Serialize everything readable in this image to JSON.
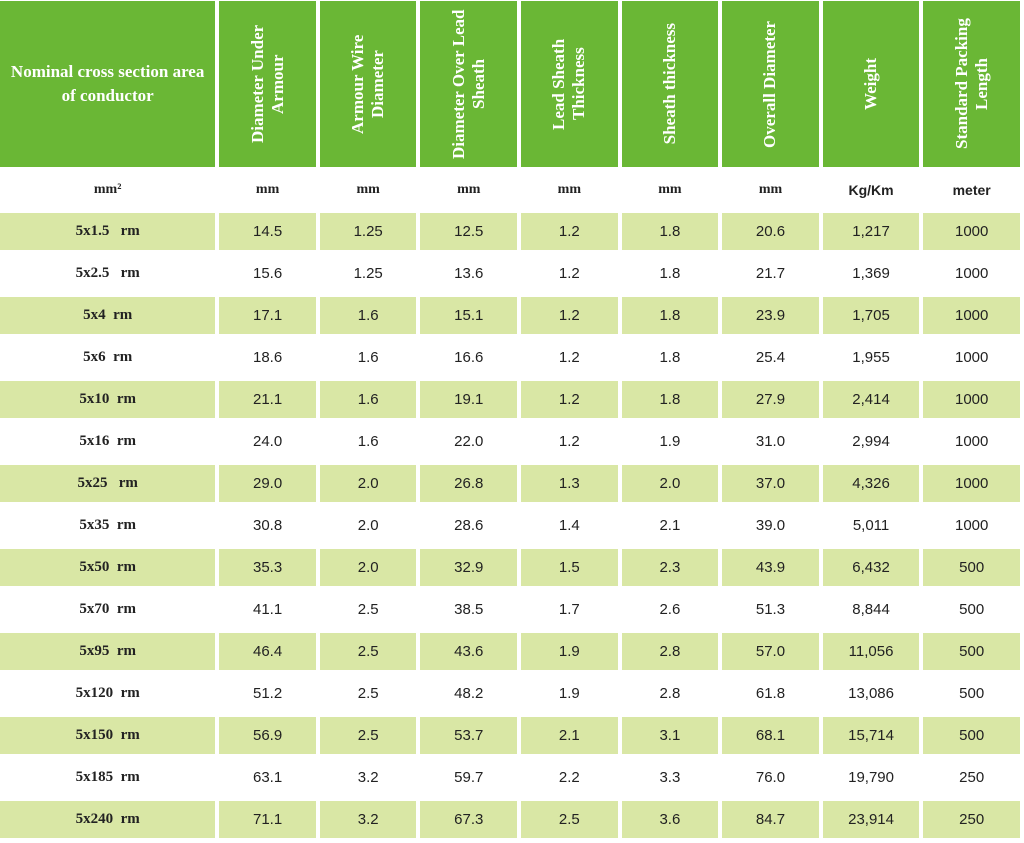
{
  "table": {
    "headers": [
      "Nominal cross section area of conductor",
      "Diameter Under Armour",
      "Armour Wire Diameter",
      "Diameter Over Lead Sheath",
      "Lead Sheath Thickness",
      "Sheath thickness",
      "Overall Diameter",
      "Weight",
      "Standard Packing Length"
    ],
    "units": [
      "mm²",
      "mm",
      "mm",
      "mm",
      "mm",
      "mm",
      "mm",
      "Kg/Km",
      "meter"
    ],
    "rows": [
      [
        "5x1.5   rm",
        "14.5",
        "1.25",
        "12.5",
        "1.2",
        "1.8",
        "20.6",
        "1,217",
        "1000"
      ],
      [
        "5x2.5   rm",
        "15.6",
        "1.25",
        "13.6",
        "1.2",
        "1.8",
        "21.7",
        "1,369",
        "1000"
      ],
      [
        "5x4  rm",
        "17.1",
        "1.6",
        "15.1",
        "1.2",
        "1.8",
        "23.9",
        "1,705",
        "1000"
      ],
      [
        "5x6  rm",
        "18.6",
        "1.6",
        "16.6",
        "1.2",
        "1.8",
        "25.4",
        "1,955",
        "1000"
      ],
      [
        "5x10  rm",
        "21.1",
        "1.6",
        "19.1",
        "1.2",
        "1.8",
        "27.9",
        "2,414",
        "1000"
      ],
      [
        "5x16  rm",
        "24.0",
        "1.6",
        "22.0",
        "1.2",
        "1.9",
        "31.0",
        "2,994",
        "1000"
      ],
      [
        "5x25   rm",
        "29.0",
        "2.0",
        "26.8",
        "1.3",
        "2.0",
        "37.0",
        "4,326",
        "1000"
      ],
      [
        "5x35  rm",
        "30.8",
        "2.0",
        "28.6",
        "1.4",
        "2.1",
        "39.0",
        "5,011",
        "1000"
      ],
      [
        "5x50  rm",
        "35.3",
        "2.0",
        "32.9",
        "1.5",
        "2.3",
        "43.9",
        "6,432",
        "500"
      ],
      [
        "5x70  rm",
        "41.1",
        "2.5",
        "38.5",
        "1.7",
        "2.6",
        "51.3",
        "8,844",
        "500"
      ],
      [
        "5x95  rm",
        "46.4",
        "2.5",
        "43.6",
        "1.9",
        "2.8",
        "57.0",
        "11,056",
        "500"
      ],
      [
        "5x120  rm",
        "51.2",
        "2.5",
        "48.2",
        "1.9",
        "2.8",
        "61.8",
        "13,086",
        "500"
      ],
      [
        "5x150  rm",
        "56.9",
        "2.5",
        "53.7",
        "2.1",
        "3.1",
        "68.1",
        "15,714",
        "500"
      ],
      [
        "5x185  rm",
        "63.1",
        "3.2",
        "59.7",
        "2.2",
        "3.3",
        "76.0",
        "19,790",
        "250"
      ],
      [
        "5x240  rm",
        "71.1",
        "3.2",
        "67.3",
        "2.5",
        "3.6",
        "84.7",
        "23,914",
        "250"
      ]
    ]
  },
  "colors": {
    "header_bg": "#6ab735",
    "header_text": "#ffffff",
    "shaded_row": "#d9e7a5",
    "plain_row": "#ffffff"
  }
}
